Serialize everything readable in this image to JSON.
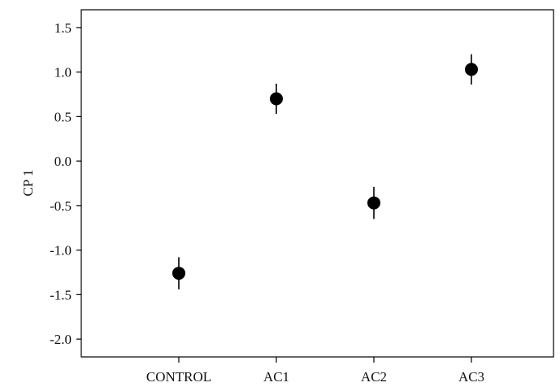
{
  "chart_data": {
    "type": "scatter",
    "title": "",
    "xlabel": "",
    "ylabel": "CP 1",
    "categories": [
      "CONTROL",
      "AC1",
      "AC2",
      "AC3"
    ],
    "series": [
      {
        "values": [
          -1.26,
          0.7,
          -0.47,
          1.03
        ],
        "error": [
          0.18,
          0.17,
          0.18,
          0.17
        ]
      }
    ],
    "ylim": [
      -2.2,
      1.7
    ],
    "yticks": [
      -2.0,
      -1.5,
      -1.0,
      -0.5,
      0.0,
      0.5,
      1.0,
      1.5
    ],
    "ytick_labels": [
      "-2.0",
      "-1.5",
      "-1.0",
      "-0.5",
      "0.0",
      "0.5",
      "1.0",
      "1.5"
    ],
    "grid": false,
    "legend": "none",
    "colors": {
      "marker": "#000000",
      "axis": "#000000"
    }
  }
}
